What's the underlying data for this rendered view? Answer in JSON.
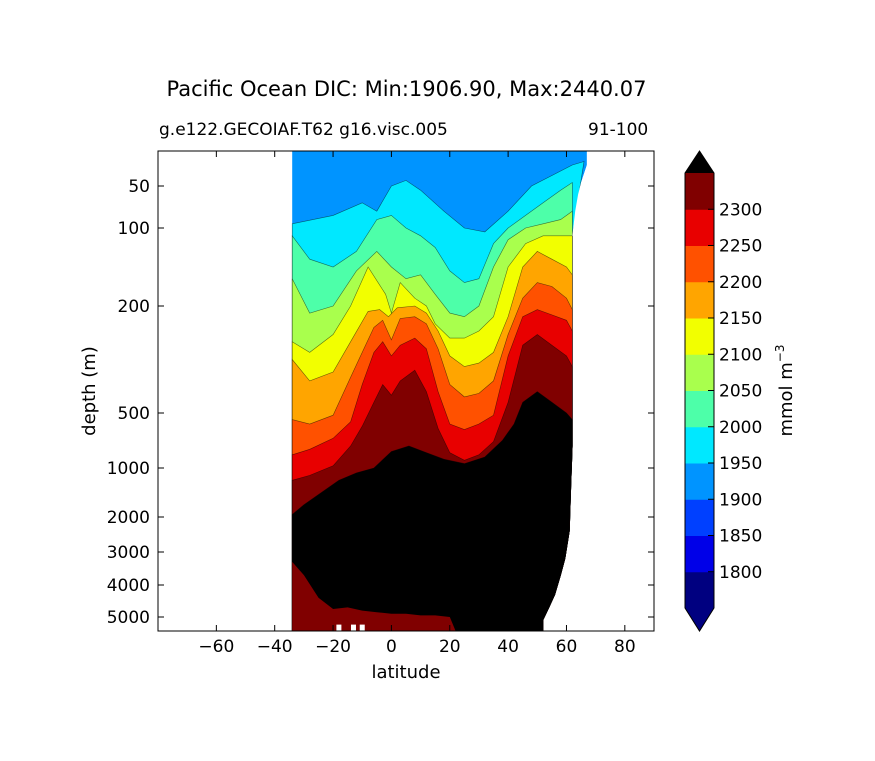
{
  "chart_data": {
    "type": "heatmap",
    "subtype": "filled-contour",
    "title": "Pacific Ocean DIC: Min:1906.90, Max:2440.07",
    "subtitle_left": "g.e122.GECOIAF.T62 g16.visc.005",
    "subtitle_right": "91-100",
    "xlabel": "latitude",
    "ylabel": "depth (m)",
    "xlim": [
      -80,
      90
    ],
    "ylim": [
      5500,
      0
    ],
    "yscale": "symlog-like (depth)",
    "xticks": [
      -60,
      -40,
      -20,
      0,
      20,
      40,
      60,
      80
    ],
    "xtick_labels": [
      "−60",
      "−40",
      "−20",
      "0",
      "20",
      "40",
      "60",
      "80"
    ],
    "yticks": [
      50,
      100,
      200,
      500,
      1000,
      2000,
      3000,
      4000,
      5000
    ],
    "ytick_labels": [
      "50",
      "100",
      "200",
      "500",
      "1000",
      "2000",
      "3000",
      "4000",
      "5000"
    ],
    "colorbar": {
      "label": "mmol m⁻³",
      "label_text": "mmol m",
      "label_sup": "−3",
      "extend": "both",
      "levels": [
        1750,
        1800,
        1850,
        1900,
        1950,
        2000,
        2050,
        2100,
        2150,
        2200,
        2250,
        2300,
        2350
      ],
      "tick_values": [
        1800,
        1850,
        1900,
        1950,
        2000,
        2050,
        2100,
        2150,
        2200,
        2250,
        2300
      ],
      "tick_labels": [
        "1800",
        "1850",
        "1900",
        "1950",
        "2000",
        "2050",
        "2100",
        "2150",
        "2200",
        "2250",
        "2300"
      ],
      "colors": [
        "#000080",
        "#0000e8",
        "#0040ff",
        "#0094ff",
        "#00e8ff",
        "#4dffa9",
        "#a9ff4d",
        "#f2ff00",
        "#ffa500",
        "#ff5100",
        "#e80000",
        "#800000"
      ],
      "under_color": "#000080",
      "over_color": "#000000"
    },
    "contour_boundaries": [
      {
        "value": 1950,
        "points": [
          [
            -34,
            95
          ],
          [
            -20,
            85
          ],
          [
            -10,
            70
          ],
          [
            -5,
            80
          ],
          [
            0,
            50
          ],
          [
            5,
            42
          ],
          [
            10,
            55
          ],
          [
            18,
            80
          ],
          [
            25,
            100
          ],
          [
            32,
            105
          ],
          [
            40,
            80
          ],
          [
            48,
            50
          ],
          [
            55,
            35
          ],
          [
            62,
            20
          ],
          [
            66,
            15
          ]
        ]
      },
      {
        "value": 2000,
        "points": [
          [
            -34,
            110
          ],
          [
            -28,
            140
          ],
          [
            -20,
            150
          ],
          [
            -12,
            130
          ],
          [
            -5,
            90
          ],
          [
            0,
            85
          ],
          [
            5,
            100
          ],
          [
            10,
            110
          ],
          [
            15,
            125
          ],
          [
            20,
            155
          ],
          [
            25,
            170
          ],
          [
            30,
            165
          ],
          [
            35,
            120
          ],
          [
            40,
            100
          ],
          [
            46,
            85
          ],
          [
            52,
            70
          ],
          [
            58,
            55
          ],
          [
            62,
            45
          ]
        ]
      },
      {
        "value": 2050,
        "points": [
          [
            -34,
            165
          ],
          [
            -28,
            220
          ],
          [
            -20,
            200
          ],
          [
            -12,
            155
          ],
          [
            -5,
            130
          ],
          [
            0,
            150
          ],
          [
            5,
            165
          ],
          [
            10,
            160
          ],
          [
            15,
            185
          ],
          [
            20,
            220
          ],
          [
            25,
            230
          ],
          [
            30,
            200
          ],
          [
            35,
            150
          ],
          [
            40,
            115
          ],
          [
            46,
            100
          ],
          [
            52,
            95
          ],
          [
            58,
            90
          ],
          [
            62,
            80
          ]
        ]
      },
      {
        "value": 2100,
        "points": [
          [
            -34,
            300
          ],
          [
            -28,
            330
          ],
          [
            -20,
            280
          ],
          [
            -14,
            200
          ],
          [
            -8,
            150
          ],
          [
            -2,
            185
          ],
          [
            0,
            220
          ],
          [
            3,
            170
          ],
          [
            8,
            190
          ],
          [
            12,
            200
          ],
          [
            15,
            250
          ],
          [
            20,
            290
          ],
          [
            25,
            290
          ],
          [
            30,
            270
          ],
          [
            35,
            230
          ],
          [
            40,
            150
          ],
          [
            46,
            120
          ],
          [
            52,
            110
          ],
          [
            58,
            110
          ],
          [
            62,
            110
          ]
        ]
      },
      {
        "value": 2150,
        "points": [
          [
            -34,
            350
          ],
          [
            -28,
            410
          ],
          [
            -20,
            385
          ],
          [
            -14,
            300
          ],
          [
            -8,
            215
          ],
          [
            -4,
            210
          ],
          [
            -1,
            230
          ],
          [
            2,
            205
          ],
          [
            8,
            200
          ],
          [
            12,
            220
          ],
          [
            16,
            270
          ],
          [
            20,
            340
          ],
          [
            25,
            370
          ],
          [
            30,
            360
          ],
          [
            35,
            330
          ],
          [
            40,
            230
          ],
          [
            45,
            150
          ],
          [
            50,
            130
          ],
          [
            55,
            140
          ],
          [
            60,
            150
          ],
          [
            62,
            160
          ]
        ]
      },
      {
        "value": 2200,
        "points": [
          [
            -34,
            560
          ],
          [
            -28,
            600
          ],
          [
            -20,
            520
          ],
          [
            -14,
            400
          ],
          [
            -10,
            330
          ],
          [
            -6,
            260
          ],
          [
            -3,
            240
          ],
          [
            0,
            295
          ],
          [
            3,
            235
          ],
          [
            8,
            230
          ],
          [
            12,
            250
          ],
          [
            16,
            320
          ],
          [
            20,
            420
          ],
          [
            25,
            455
          ],
          [
            30,
            445
          ],
          [
            35,
            410
          ],
          [
            40,
            280
          ],
          [
            45,
            190
          ],
          [
            50,
            170
          ],
          [
            55,
            175
          ],
          [
            60,
            190
          ],
          [
            62,
            210
          ]
        ]
      },
      {
        "value": 2250,
        "points": [
          [
            -34,
            880
          ],
          [
            -28,
            830
          ],
          [
            -20,
            730
          ],
          [
            -14,
            580
          ],
          [
            -10,
            420
          ],
          [
            -6,
            330
          ],
          [
            -3,
            300
          ],
          [
            0,
            340
          ],
          [
            3,
            310
          ],
          [
            8,
            290
          ],
          [
            12,
            320
          ],
          [
            16,
            440
          ],
          [
            20,
            600
          ],
          [
            25,
            650
          ],
          [
            30,
            600
          ],
          [
            35,
            520
          ],
          [
            40,
            340
          ],
          [
            45,
            230
          ],
          [
            50,
            210
          ],
          [
            55,
            225
          ],
          [
            60,
            240
          ],
          [
            62,
            270
          ]
        ]
      },
      {
        "value": 2300,
        "points": [
          [
            -34,
            1250
          ],
          [
            -28,
            1150
          ],
          [
            -20,
            980
          ],
          [
            -14,
            800
          ],
          [
            -10,
            620
          ],
          [
            -6,
            470
          ],
          [
            -3,
            420
          ],
          [
            0,
            450
          ],
          [
            3,
            410
          ],
          [
            8,
            380
          ],
          [
            12,
            440
          ],
          [
            16,
            640
          ],
          [
            20,
            860
          ],
          [
            25,
            930
          ],
          [
            30,
            880
          ],
          [
            35,
            760
          ],
          [
            40,
            470
          ],
          [
            45,
            310
          ],
          [
            50,
            280
          ],
          [
            55,
            310
          ],
          [
            60,
            340
          ],
          [
            62,
            370
          ]
        ]
      },
      {
        "value": 2350,
        "points": [
          [
            -34,
            1950
          ],
          [
            -30,
            1750
          ],
          [
            -24,
            1500
          ],
          [
            -18,
            1250
          ],
          [
            -12,
            1100
          ],
          [
            -6,
            1000
          ],
          [
            0,
            850
          ],
          [
            6,
            800
          ],
          [
            12,
            860
          ],
          [
            18,
            920
          ],
          [
            25,
            960
          ],
          [
            32,
            900
          ],
          [
            38,
            750
          ],
          [
            42,
            600
          ],
          [
            45,
            470
          ],
          [
            50,
            440
          ],
          [
            55,
            470
          ],
          [
            60,
            500
          ],
          [
            62,
            560
          ]
        ]
      }
    ],
    "ocean_region": {
      "lat_min": -34,
      "lat_max": 67,
      "top_edge": [
        [
          -34,
          0
        ],
        [
          62,
          0
        ],
        [
          63,
          0
        ],
        [
          64,
          0
        ],
        [
          66,
          0
        ],
        [
          67,
          0
        ],
        [
          67,
          20
        ],
        [
          65,
          45
        ],
        [
          64,
          60
        ],
        [
          63,
          80
        ],
        [
          62,
          100
        ]
      ]
    },
    "bottom_water_boundary": {
      "color": "#800000",
      "points": [
        [
          -34,
          3300
        ],
        [
          -30,
          3700
        ],
        [
          -25,
          4400
        ],
        [
          -20,
          4750
        ],
        [
          -15,
          4700
        ],
        [
          -10,
          4800
        ],
        [
          -5,
          4850
        ],
        [
          0,
          4900
        ],
        [
          5,
          4900
        ],
        [
          10,
          4950
        ],
        [
          15,
          4950
        ],
        [
          20,
          5000
        ],
        [
          22,
          5500
        ]
      ]
    },
    "seafloor": [
      [
        -34,
        5500
      ],
      [
        52,
        5500
      ],
      [
        52,
        5100
      ],
      [
        54,
        4700
      ],
      [
        56,
        4300
      ],
      [
        58,
        3700
      ],
      [
        59.5,
        3200
      ],
      [
        61,
        2400
      ],
      [
        61.5,
        1400
      ],
      [
        62,
        800
      ],
      [
        62,
        110
      ]
    ],
    "white_gaps": [
      {
        "lat": -18,
        "depth": 5200
      },
      {
        "lat": -13,
        "depth": 5200
      },
      {
        "lat": -10,
        "depth": 5200
      }
    ]
  }
}
